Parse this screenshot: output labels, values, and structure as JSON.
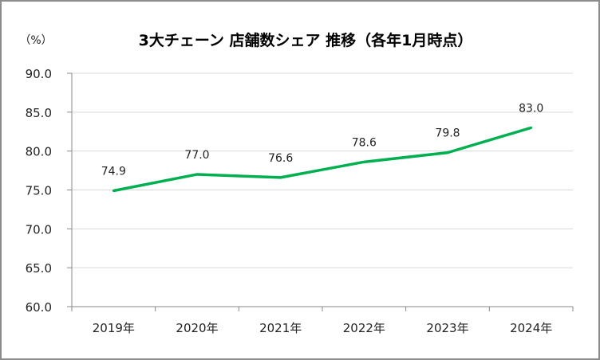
{
  "chart_data": {
    "type": "line",
    "title": "3大チェーン 店舗数シェア 推移（各年1月時点）",
    "ylabel": "（%）",
    "xlabel": "",
    "categories": [
      "2019年",
      "2020年",
      "2021年",
      "2022年",
      "2023年",
      "2024年"
    ],
    "series": [
      {
        "values": [
          74.9,
          77.0,
          76.6,
          78.6,
          79.8,
          83.0
        ],
        "labels": [
          "74.9",
          "77.0",
          "76.6",
          "78.6",
          "79.8",
          "83.0"
        ],
        "color": "#00b050"
      }
    ],
    "ylim": [
      60,
      90
    ],
    "yticks": [
      "60.0",
      "65.0",
      "70.0",
      "75.0",
      "80.0",
      "85.0",
      "90.0"
    ],
    "grid": true,
    "legend": "none"
  }
}
